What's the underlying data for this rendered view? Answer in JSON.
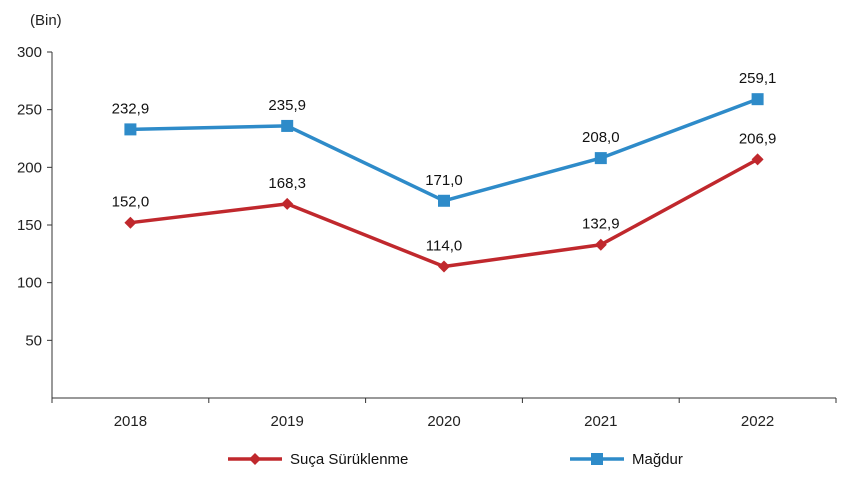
{
  "chart_data": {
    "type": "line",
    "unit_label": "(Bin)",
    "categories": [
      "2018",
      "2019",
      "2020",
      "2021",
      "2022"
    ],
    "ylim": [
      0,
      300
    ],
    "yticks": [
      50,
      100,
      150,
      200,
      250,
      300
    ],
    "grid": false,
    "legend_position": "bottom",
    "series": [
      {
        "name": "Suça Sürüklenme",
        "color": "#c0282d",
        "marker": "diamond",
        "values": [
          152.0,
          168.3,
          114.0,
          132.9,
          206.9
        ],
        "labels": [
          "152,0",
          "168,3",
          "114,0",
          "132,9",
          "206,9"
        ]
      },
      {
        "name": "Mağdur",
        "color": "#2e8bc9",
        "marker": "square",
        "values": [
          232.9,
          235.9,
          171.0,
          208.0,
          259.1
        ],
        "labels": [
          "232,9",
          "235,9",
          "171,0",
          "208,0",
          "259,1"
        ]
      }
    ]
  }
}
